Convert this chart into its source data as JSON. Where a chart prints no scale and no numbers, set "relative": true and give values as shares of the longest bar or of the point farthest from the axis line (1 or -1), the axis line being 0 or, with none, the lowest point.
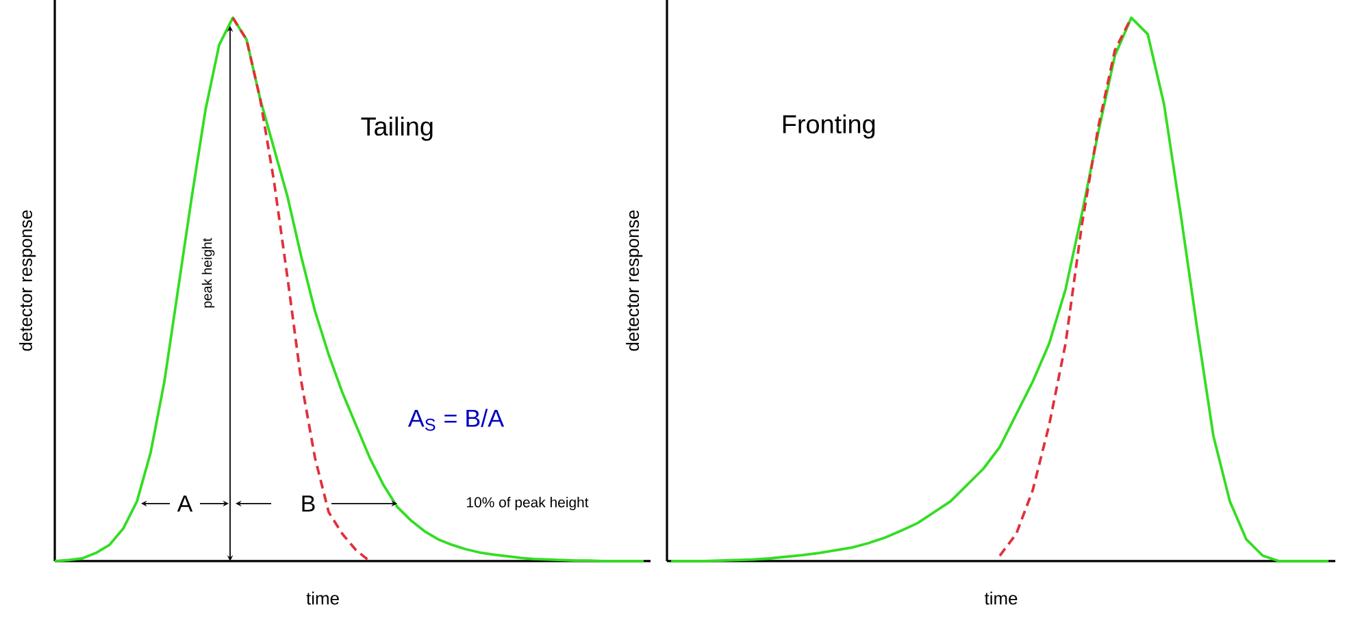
{
  "chart_data": [
    {
      "type": "line",
      "relative": true,
      "title": "Tailing",
      "xlabel": "time",
      "ylabel": "detector response",
      "categories": [
        null,
        null,
        null,
        null,
        null,
        null,
        null,
        null,
        null,
        null,
        null,
        null,
        null,
        null,
        null,
        null,
        null,
        null,
        null,
        null,
        null,
        null,
        null,
        null,
        null,
        null,
        null,
        null,
        null,
        null,
        null,
        null,
        null,
        null,
        null,
        null,
        null,
        null,
        null,
        null,
        null,
        null,
        null,
        null
      ],
      "series": [
        {
          "color": "#33dd22",
          "line_style": "solid",
          "values": [
            0,
            0.002,
            0.005,
            0.015,
            0.03,
            0.06,
            0.11,
            0.2,
            0.33,
            0.5,
            0.67,
            0.83,
            0.95,
            1.0,
            0.96,
            0.85,
            0.76,
            0.67,
            0.56,
            0.46,
            0.38,
            0.31,
            0.25,
            0.19,
            0.14,
            0.1,
            0.075,
            0.055,
            0.04,
            0.03,
            0.022,
            0.016,
            0.012,
            0.009,
            0.006,
            0.004,
            0.003,
            0.002,
            0.001,
            0.001,
            0,
            0,
            0,
            0
          ]
        },
        {
          "color": "#e0303a",
          "line_style": "dashed",
          "values": [
            null,
            null,
            null,
            null,
            null,
            null,
            null,
            null,
            null,
            null,
            null,
            null,
            null,
            1.0,
            0.96,
            0.85,
            0.7,
            0.52,
            0.33,
            0.19,
            0.09,
            0.05,
            0.02,
            0,
            null,
            null,
            null,
            null,
            null,
            null,
            null,
            null,
            null,
            null,
            null,
            null,
            null,
            null,
            null,
            null,
            null,
            null,
            null,
            null
          ]
        }
      ],
      "annotations": [
        "peak height",
        "A",
        "B",
        "10% of peak height",
        "A$_{S}$ = B/A"
      ]
    },
    {
      "type": "line",
      "relative": true,
      "title": "Fronting",
      "xlabel": "time",
      "ylabel": "detector response",
      "categories": [
        null,
        null,
        null,
        null,
        null,
        null,
        null,
        null,
        null,
        null,
        null,
        null,
        null,
        null,
        null,
        null,
        null,
        null,
        null,
        null,
        null,
        null,
        null,
        null,
        null,
        null,
        null,
        null,
        null,
        null,
        null,
        null,
        null,
        null,
        null,
        null,
        null,
        null,
        null,
        null,
        null
      ],
      "series": [
        {
          "color": "#33dd22",
          "line_style": "solid",
          "values": [
            0,
            0,
            0,
            0.001,
            0.002,
            0.003,
            0.005,
            0.008,
            0.011,
            0.015,
            0.02,
            0.025,
            0.033,
            0.043,
            0.056,
            0.07,
            0.09,
            0.11,
            0.14,
            0.17,
            0.21,
            0.27,
            0.33,
            0.4,
            0.5,
            0.64,
            0.79,
            0.93,
            1.0,
            0.97,
            0.84,
            0.64,
            0.43,
            0.23,
            0.11,
            0.04,
            0.01,
            0,
            0,
            0,
            0
          ]
        },
        {
          "color": "#e0303a",
          "line_style": "dashed",
          "values": [
            null,
            null,
            null,
            null,
            null,
            null,
            null,
            null,
            null,
            null,
            null,
            null,
            null,
            null,
            null,
            null,
            null,
            null,
            null,
            null,
            0.01,
            0.05,
            0.13,
            0.25,
            0.4,
            0.62,
            0.8,
            0.94,
            1.0,
            null,
            null,
            null,
            null,
            null,
            null,
            null,
            null,
            null,
            null,
            null,
            null
          ]
        }
      ]
    }
  ]
}
